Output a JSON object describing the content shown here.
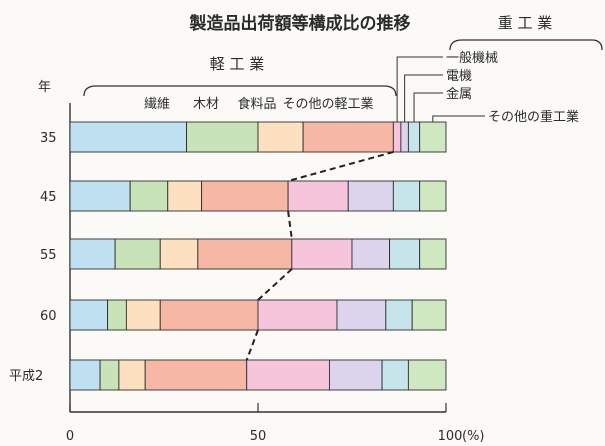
{
  "chart_data": {
    "type": "bar",
    "stacked": true,
    "orientation": "horizontal",
    "title": "製造品出荷額等構成比の推移",
    "y_axis_label": "年",
    "x_unit": "(%)",
    "xlim": [
      0,
      100
    ],
    "x_ticks": [
      "0",
      "50",
      "100"
    ],
    "categories": [
      "35",
      "45",
      "55",
      "60",
      "平成2"
    ],
    "group_labels": {
      "light": "軽 工 業",
      "heavy": "重 工 業"
    },
    "series": [
      {
        "name": "繊維",
        "group": "light",
        "color": "#bfe0f1",
        "values": [
          31,
          16,
          12,
          10,
          8
        ]
      },
      {
        "name": "木材",
        "group": "light",
        "color": "#c8e3b8",
        "values": [
          19,
          10,
          12,
          5,
          5
        ]
      },
      {
        "name": "食料品",
        "group": "light",
        "color": "#fde0c0",
        "values": [
          12,
          9,
          10,
          9,
          7
        ]
      },
      {
        "name": "その他の軽工業",
        "group": "light",
        "color": "#f6b7a4",
        "values": [
          24,
          23,
          25,
          26,
          27
        ]
      },
      {
        "name": "一般機械",
        "group": "heavy",
        "color": "#f7c5db",
        "values": [
          2,
          16,
          16,
          21,
          22
        ]
      },
      {
        "name": "電機",
        "group": "heavy",
        "color": "#dcd3ec",
        "values": [
          2,
          12,
          10,
          13,
          14
        ]
      },
      {
        "name": "金属",
        "group": "heavy",
        "color": "#c6e5ea",
        "values": [
          3,
          7,
          8,
          7,
          7
        ]
      },
      {
        "name": "その他の重工業",
        "group": "heavy",
        "color": "#cfe8c2",
        "values": [
          7,
          7,
          7,
          9,
          10
        ]
      }
    ],
    "divider": "dashed line linking the light/heavy industry boundary across years",
    "grid": false,
    "legend": "labels along top"
  }
}
